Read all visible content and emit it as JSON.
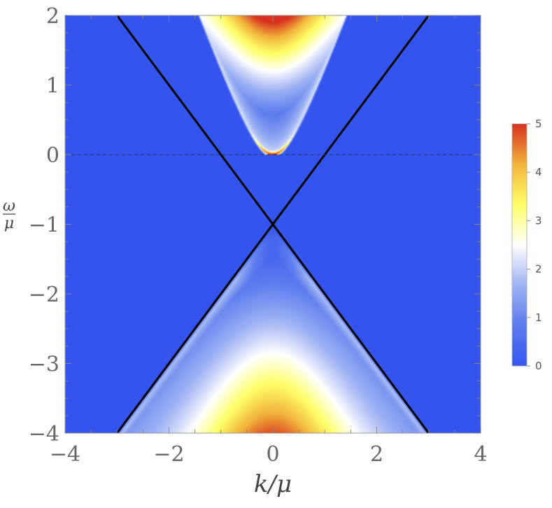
{
  "chart_data": {
    "type": "heatmap",
    "title": "",
    "x_axis": {
      "label": "k/μ",
      "range": [
        -4,
        4
      ],
      "ticks": [
        -4,
        -2,
        0,
        2,
        4
      ],
      "tick_labels": [
        "−4",
        "−2",
        "0",
        "2",
        "4"
      ]
    },
    "y_axis": {
      "label_numerator": "ω",
      "label_denominator": "μ",
      "range": [
        -4,
        2
      ],
      "ticks": [
        2,
        1,
        0,
        -1,
        -2,
        -3,
        -4
      ],
      "tick_labels": [
        "2",
        "1",
        "0",
        "−1",
        "−2",
        "−3",
        "−4"
      ]
    },
    "colorbar": {
      "range": [
        0,
        5
      ],
      "ticks": [
        0,
        1,
        2,
        3,
        4,
        5
      ],
      "tick_labels": [
        "0",
        "1",
        "2",
        "3",
        "4",
        "5"
      ],
      "colormap": [
        "#3355ee",
        "#5b7bee",
        "#9fb3f4",
        "#ffffff",
        "#ffff66",
        "#f2b43c",
        "#d7301f"
      ]
    },
    "lines": [
      {
        "style": "solid",
        "color": "#000000",
        "points": [
          [
            -3,
            2
          ],
          [
            3,
            -4
          ]
        ]
      },
      {
        "style": "solid",
        "color": "#000000",
        "points": [
          [
            -3,
            -4
          ],
          [
            3,
            2
          ]
        ]
      },
      {
        "style": "dashed",
        "color": "#22335a",
        "points": [
          [
            -4,
            0
          ],
          [
            4,
            0
          ]
        ]
      }
    ],
    "features": {
      "upper_band_vertex": [
        0,
        0
      ],
      "lines_cross_at": [
        0,
        -1
      ],
      "peak_value_at_band_edge": 5
    },
    "grid": false,
    "legend": "colorbar-right"
  }
}
